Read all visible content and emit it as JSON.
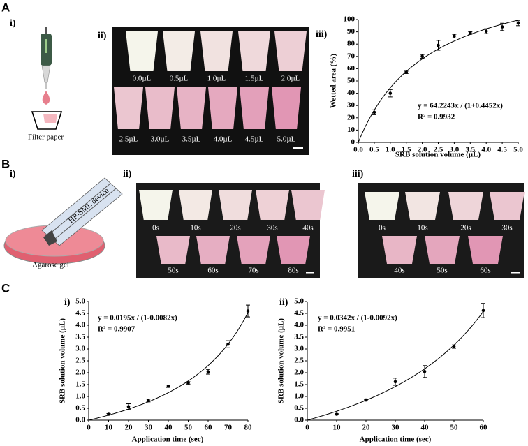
{
  "figure": {
    "A": {
      "label": "A",
      "i": "i)",
      "filter": "Filter paper",
      "ii": "ii)",
      "iii": "iii)",
      "frames": [
        "0.0µL",
        "0.5µL",
        "1.0µL",
        "1.5µL",
        "2.0µL",
        "2.5µL",
        "3.0µL",
        "3.5µL",
        "4.0µL",
        "4.5µL",
        "5.0µL"
      ]
    },
    "B": {
      "label": "B",
      "i": "i)",
      "device": "HP-SML device",
      "gel": "Agarose gel",
      "ii": "ii)",
      "iii": "iii)",
      "frames_ii": [
        "0s",
        "10s",
        "20s",
        "30s",
        "40s",
        "50s",
        "60s",
        "70s",
        "80s"
      ],
      "frames_iii": [
        "0s",
        "10s",
        "20s",
        "30s",
        "40s",
        "50s",
        "60s"
      ]
    },
    "C": {
      "label": "C",
      "i": "i)",
      "ii": "ii)"
    }
  },
  "chart_data": [
    {
      "type": "scatter",
      "color": "#000000",
      "x": [
        0.5,
        1.0,
        1.5,
        2.0,
        2.5,
        3.0,
        3.5,
        4.0,
        4.5,
        5.0
      ],
      "values": [
        24.5,
        40,
        57,
        70,
        79,
        86.5,
        89,
        90.5,
        94,
        97
      ],
      "errors": [
        2,
        3,
        1,
        1.5,
        4,
        1.5,
        1,
        2,
        3,
        2
      ],
      "equation": "y = 64.2243x / (1+0.4452x)",
      "r2": "R² = 0.9932",
      "xlabel": "SRB solution volume (µL)",
      "ylabel": "Wetted area (%)",
      "xlim": [
        0,
        5
      ],
      "ylim": [
        0,
        100
      ],
      "xticks": [
        {
          "value": 0,
          "label": "0.0"
        },
        0.5,
        {
          "value": 1,
          "label": "1.0"
        },
        1.5,
        {
          "value": 2,
          "label": "2.0"
        },
        2.5,
        {
          "value": 3,
          "label": "3.0"
        },
        3.5,
        {
          "value": 4,
          "label": "4.0"
        },
        4.5,
        {
          "value": 5,
          "label": "5.0"
        }
      ],
      "yticks": [
        0,
        10,
        20,
        30,
        40,
        50,
        60,
        70,
        80,
        90,
        100
      ]
    },
    {
      "type": "scatter",
      "color": "#000000",
      "x": [
        10,
        20,
        30,
        40,
        50,
        60,
        70,
        80
      ],
      "values": [
        0.25,
        0.57,
        0.83,
        1.43,
        1.57,
        2.04,
        3.2,
        4.6
      ],
      "errors": [
        0.03,
        0.12,
        0.06,
        0.05,
        0.05,
        0.1,
        0.15,
        0.25
      ],
      "equation": "y = 0.0195x / (1-0.0082x)",
      "r2": "R² = 0.9907",
      "xlabel": "Application time (sec)",
      "ylabel": "SRB solution volume (µL)",
      "xlim": [
        0,
        80
      ],
      "ylim": [
        0,
        5
      ],
      "xticks": [
        0,
        10,
        20,
        30,
        40,
        50,
        60,
        70,
        80
      ],
      "yticks": [
        {
          "value": 0,
          "label": "0.0"
        },
        0.5,
        {
          "value": 1,
          "label": "1.0"
        },
        1.5,
        {
          "value": 2,
          "label": "2.0"
        },
        2.5,
        {
          "value": 3,
          "label": "3.0"
        },
        3.5,
        {
          "value": 4,
          "label": "4.0"
        },
        4.5,
        {
          "value": 5,
          "label": "5.0"
        }
      ]
    },
    {
      "type": "scatter",
      "color": "#000000",
      "x": [
        10,
        20,
        30,
        40,
        50,
        60
      ],
      "values": [
        0.25,
        0.85,
        1.62,
        2.05,
        3.1,
        4.62
      ],
      "errors": [
        0.02,
        0.03,
        0.15,
        0.25,
        0.07,
        0.3
      ],
      "equation": "y = 0.0342x / (1-0.0092x)",
      "r2": "R² = 0.9951",
      "xlabel": "Application time (sec)",
      "ylabel": "SRB solution volume (µL)",
      "xlim": [
        0,
        60
      ],
      "ylim": [
        0,
        5
      ],
      "xticks": [
        0,
        10,
        20,
        30,
        40,
        50,
        60
      ],
      "yticks": [
        {
          "value": 0,
          "label": "0.0"
        },
        0.5,
        {
          "value": 1,
          "label": "1.0"
        },
        1.5,
        {
          "value": 2,
          "label": "2.0"
        },
        2.5,
        {
          "value": 3,
          "label": "3.0"
        },
        3.5,
        {
          "value": 4,
          "label": "4.0"
        },
        4.5,
        {
          "value": 5,
          "label": "5.0"
        }
      ]
    }
  ]
}
